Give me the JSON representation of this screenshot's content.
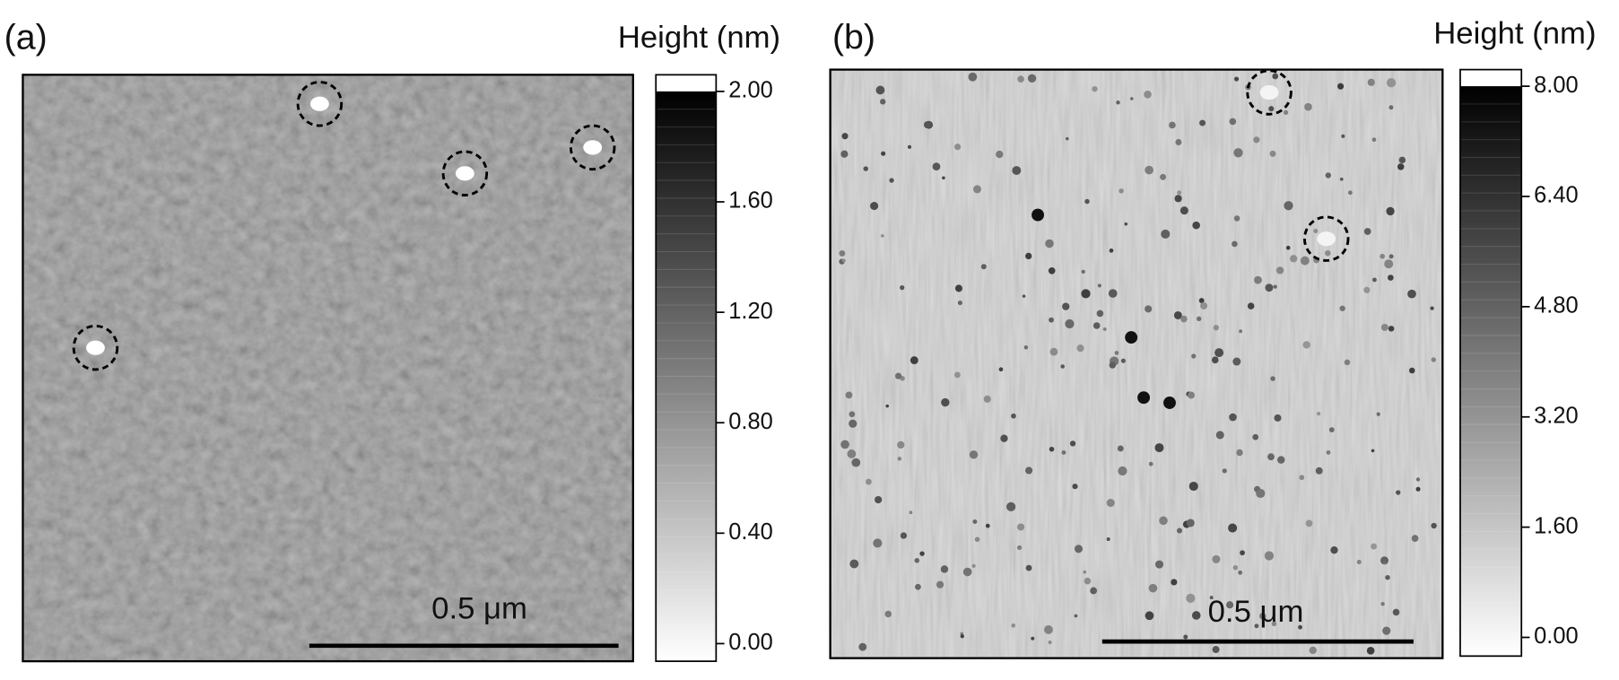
{
  "chart_data": [
    {
      "type": "afm-image",
      "panel_label": "(a)",
      "colorbar_label": "Height (nm)",
      "scale_bar_label": "0.5 μm",
      "ylim": [
        0,
        2
      ],
      "yticks": [
        {
          "value": 0,
          "label": "0.00"
        },
        {
          "value": 0.4,
          "label": "0.40"
        },
        {
          "value": 0.8,
          "label": "0.80"
        },
        {
          "value": 1.2,
          "label": "1.20"
        },
        {
          "value": 1.6,
          "label": "1.60"
        },
        {
          "value": 2,
          "label": "2.00"
        }
      ]
    },
    {
      "type": "afm-image",
      "panel_label": "(b)",
      "colorbar_label": "Height (nm)",
      "scale_bar_label": "0.5 μm",
      "ylim": [
        0,
        8
      ],
      "yticks": [
        {
          "value": 0,
          "label": "0.00"
        },
        {
          "value": 1.6,
          "label": "1.60"
        },
        {
          "value": 3.2,
          "label": "3.20"
        },
        {
          "value": 4.8,
          "label": "4.80"
        },
        {
          "value": 6.4,
          "label": "6.40"
        },
        {
          "value": 8,
          "label": "8.00"
        }
      ]
    }
  ]
}
